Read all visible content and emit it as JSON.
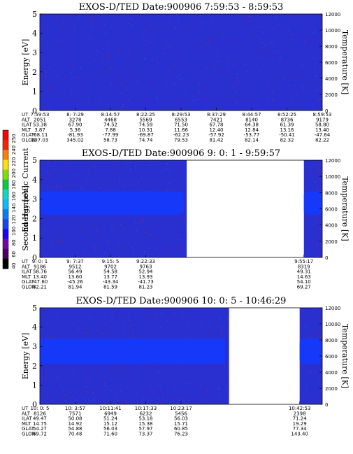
{
  "colorbar": {
    "label": "Second Harmonic Current",
    "ticks": [
      "250",
      "240",
      "220",
      "200",
      "180",
      "160",
      "140",
      "120",
      "100",
      "80",
      "60",
      "40"
    ],
    "colors": [
      "#000000",
      "#4b0066",
      "#7a00b8",
      "#1a00ff",
      "#1644ff",
      "#0080ff",
      "#00c0ff",
      "#00e0c0",
      "#00d040",
      "#80e000",
      "#ffe000",
      "#ff8000",
      "#ff2000",
      "#ff0000"
    ]
  },
  "colors": {
    "background": "#2a30d0",
    "band": "#1638f8",
    "gap": "#ffffff"
  },
  "chart_data": [
    {
      "type": "heatmap",
      "title": "EXOS-D/TED   Date:900906  7:59:53 - 8:59:53",
      "ylabel": "Energy [eV]",
      "y2label": "Temperature [K]",
      "ylim": [
        0,
        5
      ],
      "y2lim": [
        0,
        12000
      ],
      "yticks": [
        "0",
        "1",
        "2",
        "3",
        "4",
        "5"
      ],
      "y2ticks": [
        "0",
        "2000",
        "4000",
        "6000",
        "8000",
        "10000",
        "12000"
      ],
      "data_spans": [
        [
          0,
          1
        ]
      ],
      "band": null,
      "orbit_rows": [
        "UT",
        "ALT",
        "ILAT",
        "MLT",
        "GLAT",
        "GLON"
      ],
      "orbit": [
        {
          "at": 0.0,
          "UT": "7:59:53",
          "ALT": "2051",
          "ILAT": "53.38",
          "MLT": "3.87",
          "GLAT": "-68.11",
          "GLON": "297.03"
        },
        {
          "at": 0.125,
          "UT": "8: 7:29",
          "ALT": "3278",
          "ILAT": "67.90",
          "MLT": "5.36",
          "GLAT": "-81.93",
          "GLON": "345.02"
        },
        {
          "at": 0.25,
          "UT": "8:14:57",
          "ALT": "4468",
          "ILAT": "74.52",
          "MLT": "7.88",
          "GLAT": "-77.99",
          "GLON": "58.73"
        },
        {
          "at": 0.375,
          "UT": "8:22:25",
          "ALT": "5569",
          "ILAT": "74.59",
          "MLT": "10.31",
          "GLAT": "-69.87",
          "GLON": "74.74"
        },
        {
          "at": 0.5,
          "UT": "8:29:53",
          "ALT": "6553",
          "ILAT": "71.50",
          "MLT": "11.66",
          "GLAT": "-62.23",
          "GLON": "79.53"
        },
        {
          "at": 0.625,
          "UT": "8:37:29",
          "ALT": "7421",
          "ILAT": "67.78",
          "MLT": "12.40",
          "GLAT": "-57.92",
          "GLON": "81.42"
        },
        {
          "at": 0.75,
          "UT": "8:44:57",
          "ALT": "8140",
          "ILAT": "64.38",
          "MLT": "12.84",
          "GLAT": "-53.77",
          "GLON": "82.14"
        },
        {
          "at": 0.875,
          "UT": "8:52:25",
          "ALT": "8736",
          "ILAT": "61.39",
          "MLT": "13.16",
          "GLAT": "-50.41",
          "GLON": "82.32"
        },
        {
          "at": 1.0,
          "UT": "8:59:53",
          "ALT": "9179",
          "ILAT": "58.80",
          "MLT": "13.40",
          "GLAT": "-47.64",
          "GLON": "82.22"
        }
      ]
    },
    {
      "type": "heatmap",
      "title": "EXOS-D/TED   Date:900906  9: 0: 1 - 9:59:57",
      "ylabel": "Energy [eV]",
      "y2label": "Temperature [K]",
      "ylim": [
        0,
        5
      ],
      "y2lim": [
        0,
        12000
      ],
      "yticks": [
        "0",
        "1",
        "2",
        "3",
        "4",
        "5"
      ],
      "y2ticks": [
        "0",
        "2000",
        "4000",
        "6000",
        "8000",
        "10000",
        "12000"
      ],
      "data_spans": [
        [
          0,
          0.52
        ],
        [
          0.935,
          1
        ]
      ],
      "band": {
        "from_ev": 2.2,
        "to_ev": 3.4
      },
      "orbit_rows": [
        "UT",
        "ALT",
        "ILAT",
        "MLT",
        "GLAT",
        "GLON"
      ],
      "orbit": [
        {
          "at": 0.0,
          "UT": "9: 0: 1",
          "ALT": "9186",
          "ILAT": "58.76",
          "MLT": "13.40",
          "GLAT": "-47.60",
          "GLON": "82.21"
        },
        {
          "at": 0.125,
          "UT": "9: 7:37",
          "ALT": "9512",
          "ILAT": "56.49",
          "MLT": "13.60",
          "GLAT": "-45.26",
          "GLON": "81.94"
        },
        {
          "at": 0.25,
          "UT": "9:15: 5",
          "ALT": "9702",
          "ILAT": "54.58",
          "MLT": "13.77",
          "GLAT": "-43.34",
          "GLON": "81.59"
        },
        {
          "at": 0.375,
          "UT": "9:22:33",
          "ALT": "9763",
          "ILAT": "52.94",
          "MLT": "13.93",
          "GLAT": "-41.73",
          "GLON": "81.23"
        },
        {
          "at": 0.935,
          "UT": "9:55:17",
          "ALT": "8319",
          "ILAT": "49.31",
          "MLT": "14.63",
          "GLAT": "54.10",
          "GLON": "69.27"
        }
      ]
    },
    {
      "type": "heatmap",
      "title": "EXOS-D/TED   Date:900906  10: 0: 5 - 10:46:29",
      "ylabel": "Energy [eV]",
      "y2label": "Temperature [K]",
      "ylim": [
        0,
        5
      ],
      "y2lim": [
        0,
        12000
      ],
      "yticks": [
        "0",
        "1",
        "2",
        "3",
        "4",
        "5"
      ],
      "y2ticks": [
        "0",
        "2000",
        "4000",
        "6000",
        "8000",
        "10000",
        "12000"
      ],
      "data_spans": [
        [
          0,
          0.67
        ],
        [
          0.92,
          1
        ]
      ],
      "band": {
        "from_ev": 2.1,
        "to_ev": 3.4
      },
      "orbit_rows": [
        "UT",
        "ALT",
        "ILAT",
        "MLT",
        "GLAT",
        "GLON"
      ],
      "orbit": [
        {
          "at": 0.0,
          "UT": "10: 0: 5",
          "ALT": "8126",
          "ILAT": "49.47",
          "MLT": "14.75",
          "GLAT": "54.27",
          "GLON": "69.72"
        },
        {
          "at": 0.125,
          "UT": "10: 3:57",
          "ALT": "7571",
          "ILAT": "50.08",
          "MLT": "14.92",
          "GLAT": "54.88",
          "GLON": "70.48"
        },
        {
          "at": 0.25,
          "UT": "10:11:41",
          "ALT": "6949",
          "ILAT": "51.24",
          "MLT": "15.12",
          "GLAT": "56.03",
          "GLON": "71.60"
        },
        {
          "at": 0.375,
          "UT": "10:17:33",
          "ALT": "6232",
          "ILAT": "53.18",
          "MLT": "15.38",
          "GLAT": "57.97",
          "GLON": "73.37"
        },
        {
          "at": 0.5,
          "UT": "10:23:17",
          "ALT": "5456",
          "ILAT": "56.03",
          "MLT": "15.71",
          "GLAT": "60.85",
          "GLON": "76.23"
        },
        {
          "at": 0.92,
          "UT": "10:42:53",
          "ALT": "2398",
          "ILAT": "71.24",
          "MLT": "19.29",
          "GLAT": "77.34",
          "GLON": "143.40"
        }
      ]
    }
  ]
}
